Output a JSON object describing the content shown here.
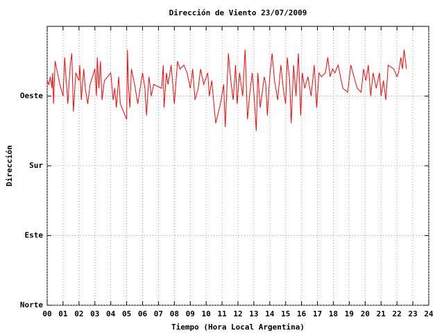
{
  "chart_data": {
    "type": "line",
    "title": "Dirección de Viento 23/07/2009",
    "x_label": "Tiempo (Hora Local Argentina)",
    "y_label": "Dirección",
    "color": "#ff0000",
    "grid": true,
    "xlim": [
      0,
      24
    ],
    "xticks": [
      {
        "value": 0,
        "label": "00"
      },
      {
        "value": 1,
        "label": "01"
      },
      {
        "value": 2,
        "label": "02"
      },
      {
        "value": 3,
        "label": "03"
      },
      {
        "value": 4,
        "label": "04"
      },
      {
        "value": 5,
        "label": "05"
      },
      {
        "value": 6,
        "label": "06"
      },
      {
        "value": 7,
        "label": "07"
      },
      {
        "value": 8,
        "label": "08"
      },
      {
        "value": 9,
        "label": "09"
      },
      10,
      11,
      12,
      13,
      14,
      15,
      16,
      17,
      18,
      19,
      20,
      21,
      22,
      23,
      24
    ],
    "ylim": [
      0,
      360
    ],
    "yticks": [
      {
        "value": 0,
        "label": "Norte"
      },
      {
        "value": 90,
        "label": "Este"
      },
      {
        "value": 180,
        "label": "Sur"
      },
      {
        "value": 270,
        "label": "Oeste"
      }
    ],
    "x": [
      0.0,
      0.1,
      0.2,
      0.3,
      0.35,
      0.4,
      0.5,
      0.6,
      0.8,
      1.0,
      1.1,
      1.2,
      1.3,
      1.45,
      1.55,
      1.65,
      1.8,
      2.0,
      2.05,
      2.15,
      2.3,
      2.4,
      2.55,
      2.7,
      3.0,
      3.1,
      3.15,
      3.25,
      3.35,
      3.45,
      3.6,
      4.0,
      4.15,
      4.25,
      4.35,
      4.5,
      4.6,
      5.0,
      5.05,
      5.1,
      5.2,
      5.3,
      5.5,
      5.7,
      6.0,
      6.15,
      6.25,
      6.4,
      6.55,
      6.7,
      7.2,
      7.3,
      7.35,
      7.5,
      7.6,
      7.8,
      8.0,
      8.2,
      8.35,
      8.6,
      8.8,
      9.0,
      9.15,
      9.3,
      9.5,
      9.65,
      9.85,
      10.1,
      10.2,
      10.35,
      10.6,
      10.9,
      11.1,
      11.2,
      11.4,
      11.55,
      11.7,
      11.85,
      11.95,
      12.1,
      12.3,
      12.45,
      12.6,
      12.75,
      12.9,
      13.05,
      13.15,
      13.25,
      13.4,
      13.5,
      13.65,
      13.75,
      13.85,
      14.0,
      14.15,
      14.3,
      14.5,
      14.7,
      14.85,
      15.0,
      15.1,
      15.25,
      15.35,
      15.5,
      15.65,
      15.8,
      15.95,
      16.05,
      16.2,
      16.4,
      16.6,
      16.8,
      16.95,
      17.1,
      17.25,
      17.5,
      17.65,
      17.8,
      17.95,
      18.1,
      18.3,
      18.6,
      18.9,
      19.1,
      19.3,
      19.5,
      19.75,
      19.9,
      20.05,
      20.2,
      20.35,
      20.5,
      20.7,
      20.9,
      21.0,
      21.15,
      21.3,
      21.45,
      21.8,
      22.0,
      22.1,
      22.25,
      22.35,
      22.45,
      22.6
    ],
    "values": [
      290,
      285,
      295,
      280,
      300,
      260,
      315,
      305,
      285,
      270,
      320,
      290,
      260,
      310,
      325,
      250,
      300,
      290,
      310,
      265,
      305,
      280,
      260,
      285,
      305,
      270,
      320,
      280,
      315,
      265,
      290,
      300,
      265,
      280,
      255,
      295,
      260,
      240,
      330,
      290,
      255,
      305,
      285,
      260,
      300,
      280,
      245,
      295,
      270,
      285,
      280,
      310,
      255,
      300,
      285,
      310,
      260,
      315,
      305,
      310,
      300,
      280,
      305,
      265,
      280,
      305,
      285,
      300,
      270,
      290,
      235,
      260,
      285,
      230,
      325,
      290,
      265,
      310,
      260,
      300,
      270,
      330,
      240,
      275,
      300,
      260,
      225,
      300,
      255,
      270,
      295,
      285,
      245,
      295,
      325,
      290,
      265,
      310,
      280,
      260,
      320,
      290,
      235,
      310,
      270,
      325,
      245,
      300,
      280,
      295,
      270,
      310,
      255,
      300,
      295,
      300,
      320,
      295,
      305,
      300,
      310,
      280,
      275,
      310,
      295,
      280,
      275,
      305,
      290,
      310,
      270,
      300,
      280,
      300,
      270,
      290,
      265,
      310,
      305,
      295,
      300,
      320,
      305,
      330,
      305
    ]
  }
}
